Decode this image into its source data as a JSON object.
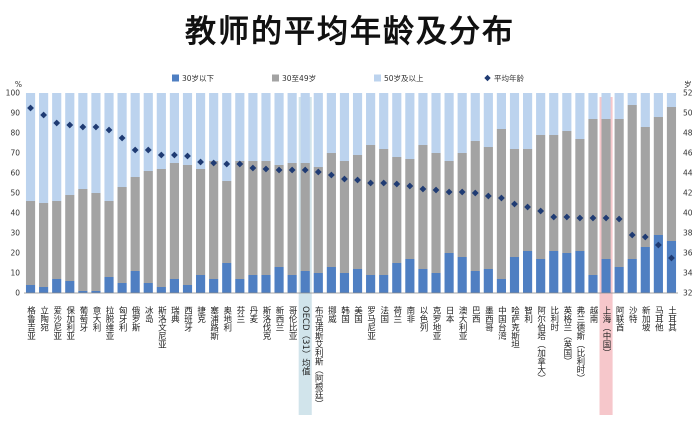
{
  "chart_data": {
    "type": "bar",
    "title": "教师的平均年龄及分布",
    "left_axis_label": "%",
    "right_axis_label": "岁",
    "ylim_left": [
      0,
      100
    ],
    "ylim_right": [
      32,
      52
    ],
    "left_ticks": [
      0,
      10,
      20,
      30,
      40,
      50,
      60,
      70,
      80,
      90,
      100
    ],
    "right_ticks": [
      32,
      34,
      36,
      38,
      40,
      42,
      44,
      46,
      48,
      50,
      52
    ],
    "legend_position": "top",
    "colors": {
      "under30": "#4f7fc2",
      "age30to49": "#a3a3a3",
      "over50": "#bcd3ee",
      "avg_marker": "#1f3b73",
      "oecd_highlight": "#cfe3ea",
      "shanghai_highlight": "#f6c4c8"
    },
    "legend": [
      {
        "key": "under30",
        "label": "30岁以下"
      },
      {
        "key": "age30to49",
        "label": "30至49岁"
      },
      {
        "key": "over50",
        "label": "50岁及以上"
      },
      {
        "key": "avg",
        "label": "平均年龄"
      }
    ],
    "highlights": [
      {
        "category": "OECD（31）均值",
        "color_key": "oecd_highlight"
      },
      {
        "category": "上海（中国）",
        "color_key": "shanghai_highlight"
      }
    ],
    "categories": [
      "格鲁吉亚",
      "立陶宛",
      "爱沙尼亚",
      "保加利亚",
      "葡萄牙",
      "意大利",
      "拉脱维亚",
      "匈牙利",
      "俄罗斯",
      "冰岛",
      "斯洛文尼亚",
      "瑞典",
      "西班牙",
      "捷克",
      "塞浦路斯",
      "奥地利",
      "芬兰",
      "丹麦",
      "斯洛伐克",
      "新西兰",
      "哥伦比亚",
      "OECD（31）均值",
      "布宜诺斯艾利斯（阿根廷）",
      "挪威",
      "韩国",
      "美国",
      "罗马尼亚",
      "法国",
      "荷兰",
      "南非",
      "以色列",
      "克罗地亚",
      "日本",
      "澳大利亚",
      "巴西",
      "墨西哥",
      "中国台湾",
      "哈萨克斯坦",
      "智利",
      "阿尔伯塔（加拿大）",
      "比利时",
      "英格兰（英国）",
      "弗兰德斯（比利时）",
      "越南",
      "上海（中国）",
      "阿联酋",
      "沙特",
      "新加坡",
      "马耳他",
      "土耳其"
    ],
    "series": [
      {
        "name": "30岁以下",
        "values": [
          4,
          3,
          7,
          6,
          1,
          1,
          8,
          5,
          11,
          5,
          3,
          7,
          4,
          9,
          7,
          15,
          7,
          9,
          9,
          13,
          9,
          11,
          10,
          13,
          10,
          12,
          9,
          9,
          15,
          17,
          12,
          10,
          20,
          18,
          11,
          12,
          7,
          18,
          21,
          17,
          21,
          20,
          21,
          9,
          17,
          13,
          17,
          23,
          29,
          26
        ]
      },
      {
        "name": "30至49岁",
        "values": [
          42,
          42,
          39,
          43,
          51,
          49,
          38,
          48,
          47,
          56,
          59,
          58,
          60,
          53,
          59,
          41,
          59,
          57,
          57,
          51,
          56,
          54,
          53,
          57,
          56,
          57,
          65,
          63,
          53,
          50,
          62,
          60,
          46,
          52,
          65,
          61,
          75,
          54,
          51,
          62,
          58,
          61,
          56,
          78,
          70,
          74,
          77,
          60,
          59,
          67
        ]
      },
      {
        "name": "50岁及以上",
        "values": [
          54,
          55,
          54,
          51,
          48,
          50,
          54,
          47,
          42,
          39,
          38,
          35,
          36,
          38,
          34,
          44,
          34,
          34,
          34,
          36,
          35,
          35,
          37,
          30,
          34,
          31,
          26,
          28,
          32,
          33,
          26,
          30,
          34,
          30,
          24,
          27,
          18,
          28,
          28,
          21,
          21,
          19,
          23,
          13,
          13,
          13,
          6,
          17,
          12,
          7
        ]
      },
      {
        "name": "平均年龄",
        "values": [
          50.5,
          49.8,
          49.0,
          48.8,
          48.6,
          48.6,
          48.3,
          47.5,
          46.3,
          46.3,
          45.8,
          45.8,
          45.7,
          45.1,
          45.0,
          44.9,
          44.9,
          44.5,
          44.4,
          44.3,
          44.3,
          44.3,
          44.1,
          43.8,
          43.4,
          43.3,
          43.0,
          43.0,
          42.9,
          42.7,
          42.4,
          42.3,
          42.1,
          42.1,
          42.0,
          41.7,
          41.5,
          40.9,
          40.6,
          40.2,
          39.6,
          39.6,
          39.5,
          39.5,
          39.5,
          39.4,
          37.8,
          37.6,
          36.8,
          35.5
        ]
      }
    ]
  }
}
